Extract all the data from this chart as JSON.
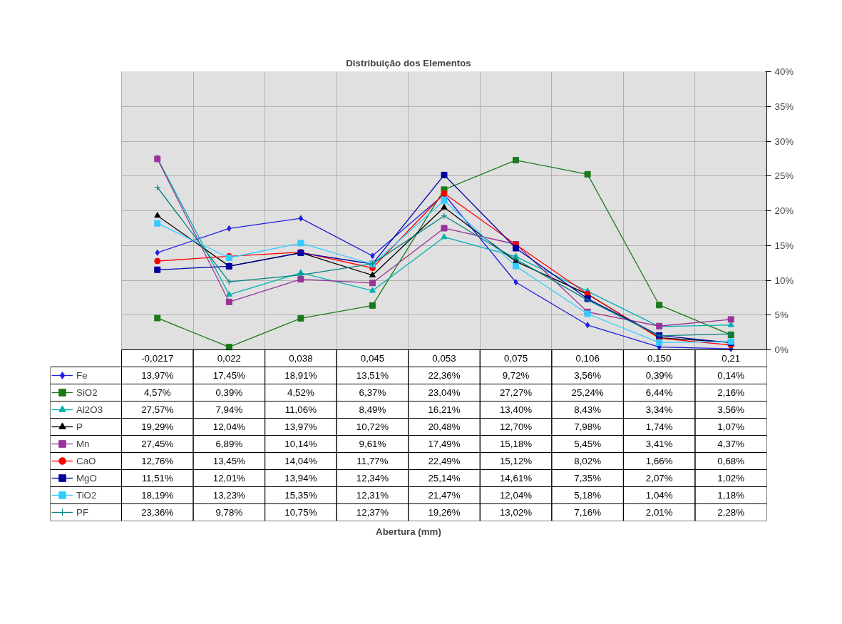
{
  "chart_data": {
    "type": "line",
    "title": "Distribuição dos Elementos",
    "annotations": [
      "Abertura (mm)"
    ],
    "categories": [
      "-0,0217",
      "0,022",
      "0,038",
      "0,045",
      "0,053",
      "0,075",
      "0,106",
      "0,150",
      "0,21"
    ],
    "ylim": [
      0,
      40
    ],
    "yticks": [
      {
        "value": 0,
        "label": "0%"
      },
      {
        "value": 5,
        "label": "5%"
      },
      {
        "value": 10,
        "label": "10%"
      },
      {
        "value": 15,
        "label": "15%"
      },
      {
        "value": 20,
        "label": "20%"
      },
      {
        "value": 25,
        "label": "25%"
      },
      {
        "value": 30,
        "label": "30%"
      },
      {
        "value": 35,
        "label": "35%"
      },
      {
        "value": 40,
        "label": "40%"
      }
    ],
    "grid": true,
    "legend": "left",
    "series": [
      {
        "name": "Fe",
        "color": "#1f1fdf",
        "marker": "diamond",
        "values": [
          13.97,
          17.45,
          18.91,
          13.51,
          22.36,
          9.72,
          3.56,
          0.39,
          0.14
        ],
        "value_labels": [
          "13,97%",
          "17,45%",
          "18,91%",
          "13,51%",
          "22,36%",
          "9,72%",
          "3,56%",
          "0,39%",
          "0,14%"
        ]
      },
      {
        "name": "SiO2",
        "color": "#1a7a1a",
        "marker": "square",
        "values": [
          4.57,
          0.39,
          4.52,
          6.37,
          23.04,
          27.27,
          25.24,
          6.44,
          2.16
        ],
        "value_labels": [
          "4,57%",
          "0,39%",
          "4,52%",
          "6,37%",
          "23,04%",
          "27,27%",
          "25,24%",
          "6,44%",
          "2,16%"
        ]
      },
      {
        "name": "Al2O3",
        "color": "#00b0b0",
        "marker": "triangle",
        "values": [
          27.57,
          7.94,
          11.06,
          8.49,
          16.21,
          13.4,
          8.43,
          3.34,
          3.56
        ],
        "value_labels": [
          "27,57%",
          "7,94%",
          "11,06%",
          "8,49%",
          "16,21%",
          "13,40%",
          "8,43%",
          "3,34%",
          "3,56%"
        ]
      },
      {
        "name": "P",
        "color": "#000000",
        "marker": "triangle",
        "values": [
          19.29,
          12.04,
          13.97,
          10.72,
          20.48,
          12.7,
          7.98,
          1.74,
          1.07
        ],
        "value_labels": [
          "19,29%",
          "12,04%",
          "13,97%",
          "10,72%",
          "20,48%",
          "12,70%",
          "7,98%",
          "1,74%",
          "1,07%"
        ]
      },
      {
        "name": "Mn",
        "color": "#993399",
        "marker": "square",
        "values": [
          27.45,
          6.89,
          10.14,
          9.61,
          17.49,
          15.18,
          5.45,
          3.41,
          4.37
        ],
        "value_labels": [
          "27,45%",
          "6,89%",
          "10,14%",
          "9,61%",
          "17,49%",
          "15,18%",
          "5,45%",
          "3,41%",
          "4,37%"
        ]
      },
      {
        "name": "CaO",
        "color": "#ff0000",
        "marker": "circle",
        "values": [
          12.76,
          13.45,
          14.04,
          11.77,
          22.49,
          15.12,
          8.02,
          1.66,
          0.68
        ],
        "value_labels": [
          "12,76%",
          "13,45%",
          "14,04%",
          "11,77%",
          "22,49%",
          "15,12%",
          "8,02%",
          "1,66%",
          "0,68%"
        ]
      },
      {
        "name": "MgO",
        "color": "#0000a0",
        "marker": "square",
        "values": [
          11.51,
          12.01,
          13.94,
          12.34,
          25.14,
          14.61,
          7.35,
          2.07,
          1.02
        ],
        "value_labels": [
          "11,51%",
          "12,01%",
          "13,94%",
          "12,34%",
          "25,14%",
          "14,61%",
          "7,35%",
          "2,07%",
          "1,02%"
        ]
      },
      {
        "name": "TiO2",
        "color": "#33ccff",
        "marker": "square",
        "values": [
          18.19,
          13.23,
          15.35,
          12.31,
          21.47,
          12.04,
          5.18,
          1.04,
          1.18
        ],
        "value_labels": [
          "18,19%",
          "13,23%",
          "15,35%",
          "12,31%",
          "21,47%",
          "12,04%",
          "5,18%",
          "1,04%",
          "1,18%"
        ]
      },
      {
        "name": "PF",
        "color": "#008080",
        "marker": "cross",
        "values": [
          23.36,
          9.78,
          10.75,
          12.37,
          19.26,
          13.02,
          7.16,
          2.01,
          2.28
        ],
        "value_labels": [
          "23,36%",
          "9,78%",
          "10,75%",
          "12,37%",
          "19,26%",
          "13,02%",
          "7,16%",
          "2,01%",
          "2,28%"
        ]
      }
    ]
  }
}
